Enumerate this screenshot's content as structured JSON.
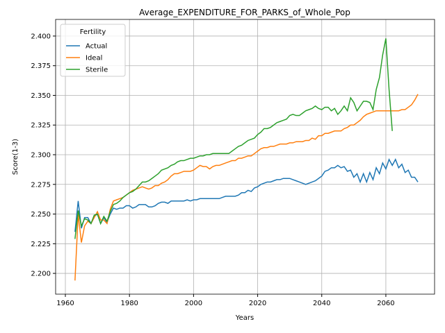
{
  "chart_data": {
    "type": "line",
    "title": "Average_EXPENDITURE_FOR_PARKS_of_Whole_Pop",
    "xlabel": "Years",
    "ylabel": "Score(1-3)",
    "x": [
      1963,
      1964,
      1965,
      1966,
      1967,
      1968,
      1969,
      1970,
      1971,
      1972,
      1973,
      1974,
      1975,
      1976,
      1977,
      1978,
      1979,
      1980,
      1981,
      1982,
      1983,
      1984,
      1985,
      1986,
      1987,
      1988,
      1989,
      1990,
      1991,
      1992,
      1993,
      1994,
      1995,
      1996,
      1997,
      1998,
      1999,
      2000,
      2001,
      2002,
      2003,
      2004,
      2005,
      2006,
      2007,
      2008,
      2009,
      2010,
      2011,
      2012,
      2013,
      2014,
      2015,
      2016,
      2017,
      2018,
      2019,
      2020,
      2021,
      2022,
      2023,
      2024,
      2025,
      2026,
      2027,
      2028,
      2029,
      2030,
      2031,
      2032,
      2033,
      2034,
      2035,
      2036,
      2037,
      2038,
      2039,
      2040,
      2041,
      2042,
      2043,
      2044,
      2045,
      2046,
      2047,
      2048,
      2049,
      2050,
      2051,
      2052,
      2053,
      2054,
      2055,
      2056,
      2057,
      2058,
      2059,
      2060,
      2061,
      2062,
      2063,
      2064,
      2065,
      2066,
      2067,
      2068,
      2069,
      2070
    ],
    "series": [
      {
        "name": "Actual",
        "color": "#1f77b4",
        "values": [
          2.235,
          2.261,
          2.238,
          2.247,
          2.247,
          2.242,
          2.248,
          2.25,
          2.242,
          2.247,
          2.243,
          2.25,
          2.255,
          2.254,
          2.255,
          2.255,
          2.257,
          2.257,
          2.255,
          2.256,
          2.258,
          2.258,
          2.258,
          2.256,
          2.256,
          2.257,
          2.259,
          2.26,
          2.26,
          2.259,
          2.261,
          2.261,
          2.261,
          2.261,
          2.261,
          2.262,
          2.261,
          2.262,
          2.262,
          2.263,
          2.263,
          2.263,
          2.263,
          2.263,
          2.263,
          2.263,
          2.264,
          2.265,
          2.265,
          2.265,
          2.265,
          2.266,
          2.268,
          2.268,
          2.27,
          2.269,
          2.272,
          2.273,
          2.275,
          2.276,
          2.277,
          2.277,
          2.278,
          2.279,
          2.279,
          2.28,
          2.28,
          2.28,
          2.279,
          2.278,
          2.277,
          2.276,
          2.275,
          2.276,
          2.277,
          2.278,
          2.28,
          2.282,
          2.286,
          2.287,
          2.289,
          2.289,
          2.291,
          2.289,
          2.29,
          2.286,
          2.287,
          2.281,
          2.284,
          2.277,
          2.284,
          2.277,
          2.285,
          2.279,
          2.289,
          2.284,
          2.293,
          2.288,
          2.296,
          2.291,
          2.296,
          2.289,
          2.292,
          2.285,
          2.287,
          2.281,
          2.281,
          2.277
        ]
      },
      {
        "name": "Ideal",
        "color": "#ff7f0e",
        "values": [
          2.194,
          2.25,
          2.226,
          2.24,
          2.244,
          2.242,
          2.247,
          2.252,
          2.245,
          2.245,
          2.242,
          2.254,
          2.261,
          2.262,
          2.263,
          2.264,
          2.266,
          2.268,
          2.27,
          2.271,
          2.272,
          2.273,
          2.272,
          2.271,
          2.272,
          2.274,
          2.274,
          2.276,
          2.277,
          2.279,
          2.282,
          2.284,
          2.284,
          2.285,
          2.286,
          2.286,
          2.286,
          2.287,
          2.289,
          2.291,
          2.29,
          2.29,
          2.288,
          2.29,
          2.291,
          2.291,
          2.292,
          2.293,
          2.294,
          2.295,
          2.295,
          2.297,
          2.297,
          2.298,
          2.299,
          2.299,
          2.301,
          2.303,
          2.305,
          2.306,
          2.306,
          2.307,
          2.307,
          2.308,
          2.309,
          2.309,
          2.309,
          2.31,
          2.31,
          2.311,
          2.311,
          2.311,
          2.312,
          2.312,
          2.314,
          2.313,
          2.316,
          2.316,
          2.318,
          2.318,
          2.319,
          2.32,
          2.32,
          2.32,
          2.322,
          2.323,
          2.325,
          2.325,
          2.327,
          2.329,
          2.332,
          2.334,
          2.335,
          2.336,
          2.337,
          2.337,
          2.337,
          2.337,
          2.337,
          2.337,
          2.337,
          2.337,
          2.338,
          2.338,
          2.34,
          2.342,
          2.346,
          2.351
        ]
      },
      {
        "name": "Sterile",
        "color": "#2ca02c",
        "values": [
          2.229,
          2.253,
          2.24,
          2.246,
          2.245,
          2.242,
          2.249,
          2.25,
          2.242,
          2.248,
          2.244,
          2.252,
          2.258,
          2.259,
          2.261,
          2.264,
          2.266,
          2.268,
          2.269,
          2.271,
          2.274,
          2.277,
          2.277,
          2.278,
          2.28,
          2.282,
          2.284,
          2.287,
          2.288,
          2.289,
          2.291,
          2.292,
          2.294,
          2.295,
          2.295,
          2.296,
          2.297,
          2.297,
          2.298,
          2.299,
          2.299,
          2.3,
          2.3,
          2.301,
          2.301,
          2.301,
          2.301,
          2.301,
          2.301,
          2.303,
          2.305,
          2.307,
          2.308,
          2.31,
          2.312,
          2.313,
          2.314,
          2.317,
          2.319,
          2.322,
          2.322,
          2.323,
          2.325,
          2.327,
          2.328,
          2.329,
          2.33,
          2.333,
          2.334,
          2.333,
          2.333,
          2.335,
          2.337,
          2.338,
          2.339,
          2.341,
          2.339,
          2.338,
          2.34,
          2.34,
          2.337,
          2.339,
          2.334,
          2.337,
          2.341,
          2.337,
          2.348,
          2.344,
          2.337,
          2.341,
          2.345,
          2.345,
          2.344,
          2.338,
          2.355,
          2.365,
          2.384,
          2.398,
          2.355,
          2.32,
          null,
          null,
          null,
          null,
          null,
          null,
          null,
          null
        ]
      }
    ],
    "xlim": [
      1956.96,
      2075.2
    ],
    "xticks": [
      1960,
      1980,
      2000,
      2020,
      2040,
      2060
    ],
    "ylim": [
      2.1825,
      2.414
    ],
    "yticks": [
      {
        "value": 2.2,
        "label": "2.200"
      },
      2.225,
      {
        "value": 2.25,
        "label": "2.250"
      },
      2.275,
      {
        "value": 2.3,
        "label": "2.300"
      },
      2.325,
      {
        "value": 2.35,
        "label": "2.350"
      },
      2.375,
      {
        "value": 2.4,
        "label": "2.400"
      }
    ],
    "grid": true,
    "legend_title": "Fertility",
    "legend_loc": "upper left"
  }
}
